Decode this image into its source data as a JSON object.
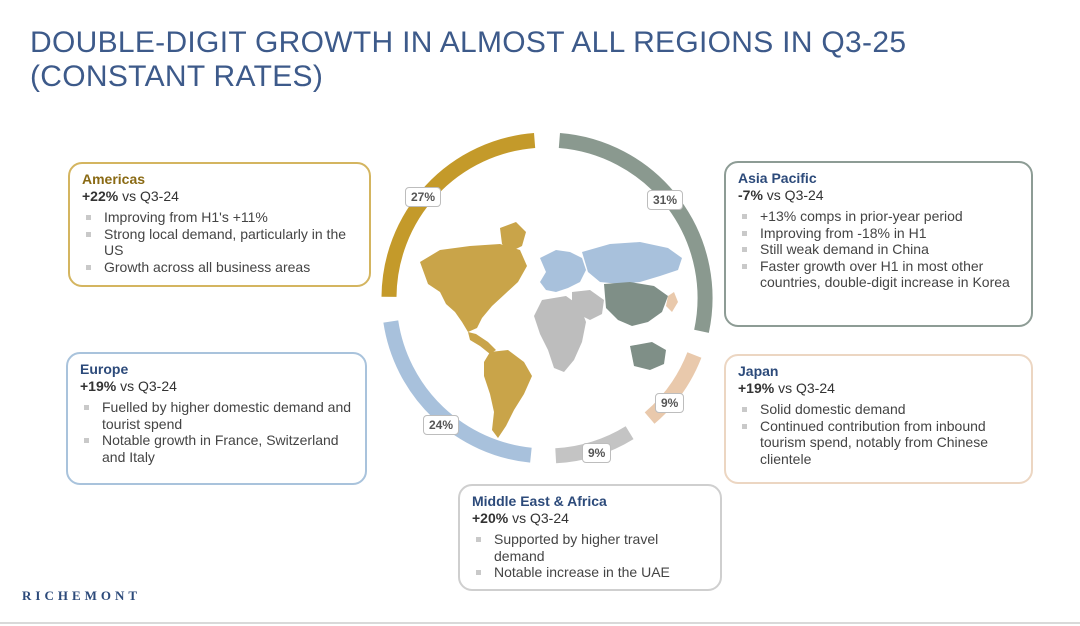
{
  "title": {
    "line1": "DOUBLE-DIGIT GROWTH IN ALMOST ALL REGIONS IN Q3-25",
    "line2": "(CONSTANT RATES)"
  },
  "colors": {
    "americas": "#c49a2a",
    "asia_pacific": "#8a998f",
    "japan": "#e9c9ac",
    "middle_east_africa": "#c4c4c4",
    "europe": "#a8c1dc",
    "title": "#3d5a8a"
  },
  "chart_data": {
    "type": "pie",
    "title": "",
    "categories": [
      "Americas",
      "Asia Pacific",
      "Japan",
      "Middle East & Africa",
      "Europe"
    ],
    "values": [
      27,
      31,
      9,
      9,
      24
    ],
    "labels": [
      "27%",
      "31%",
      "9%",
      "9%",
      "24%"
    ]
  },
  "regions": {
    "americas": {
      "name": "Americas",
      "growth": "+22%",
      "vs": "vs Q3-24",
      "bullets": [
        "Improving from H1's +11%",
        "Strong local demand, particularly in the US",
        "Growth across all business areas"
      ]
    },
    "europe": {
      "name": "Europe",
      "growth": "+19%",
      "vs": "vs Q3-24",
      "bullets": [
        "Fuelled by higher domestic demand and tourist spend",
        "Notable growth in France, Switzerland and Italy"
      ]
    },
    "asia": {
      "name": "Asia Pacific",
      "growth": "-7%",
      "vs": "vs Q3-24",
      "bullets": [
        "+13% comps in prior-year period",
        "Improving from -18% in H1",
        "Still weak demand in China",
        "Faster growth over H1 in most other countries, double-digit increase in Korea"
      ]
    },
    "japan": {
      "name": "Japan",
      "growth": "+19%",
      "vs": "vs Q3-24",
      "bullets": [
        "Solid domestic demand",
        "Continued contribution from inbound tourism spend, notably from Chinese clientele"
      ]
    },
    "mea": {
      "name": "Middle East & Africa",
      "growth": "+20%",
      "vs": "vs Q3-24",
      "bullets": [
        "Supported by higher travel demand",
        "Notable increase in the UAE"
      ]
    }
  },
  "brand": {
    "name": "RICHEMONT"
  }
}
